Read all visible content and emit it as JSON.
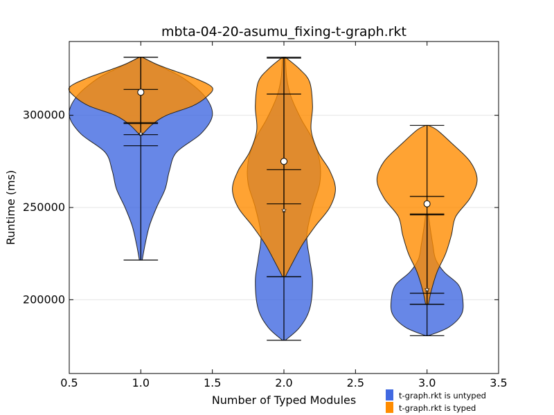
{
  "chart_data": {
    "type": "violin",
    "title": "mbta-04-20-asumu_fixing-t-graph.rkt",
    "xlabel": "Number of Typed Modules",
    "ylabel": "Runtime (ms)",
    "xlim": [
      0.5,
      3.5
    ],
    "ylim": [
      160000,
      340000
    ],
    "xticks": [
      0.5,
      1.0,
      1.5,
      2.0,
      2.5,
      3.0,
      3.5
    ],
    "xtick_labels": [
      "0.5",
      "1.0",
      "1.5",
      "2.0",
      "2.5",
      "3.0",
      "3.5"
    ],
    "yticks": [
      200000,
      250000,
      300000
    ],
    "ytick_labels": [
      "200000",
      "250000",
      "300000"
    ],
    "grid": "horizontal",
    "legend_position": "bottom-right, outside plot",
    "series": [
      {
        "name": "t-graph.rkt is untyped",
        "color": "#4169E1",
        "violins": [
          {
            "x": 1.0,
            "min": 221500,
            "max": 331500,
            "mean": 290000,
            "ci_low": 283500,
            "ci_high": 296000,
            "profile": [
              [
                221500,
                0.01
              ],
              [
                230000,
                0.03
              ],
              [
                240000,
                0.06
              ],
              [
                250000,
                0.11
              ],
              [
                260000,
                0.17
              ],
              [
                270000,
                0.2
              ],
              [
                280000,
                0.25
              ],
              [
                290000,
                0.42
              ],
              [
                300000,
                0.5
              ],
              [
                310000,
                0.45
              ],
              [
                320000,
                0.3
              ],
              [
                326000,
                0.15
              ],
              [
                331500,
                0.01
              ]
            ]
          },
          {
            "x": 2.0,
            "min": 178000,
            "max": 331000,
            "mean": 248500,
            "ci_low": 212500,
            "ci_high": 270500,
            "profile": [
              [
                178000,
                0.01
              ],
              [
                185000,
                0.11
              ],
              [
                195000,
                0.18
              ],
              [
                210000,
                0.2
              ],
              [
                222000,
                0.18
              ],
              [
                235000,
                0.16
              ],
              [
                250000,
                0.2
              ],
              [
                263000,
                0.25
              ],
              [
                275000,
                0.25
              ],
              [
                287000,
                0.2
              ],
              [
                298000,
                0.12
              ],
              [
                310000,
                0.05
              ],
              [
                320000,
                0.02
              ],
              [
                331000,
                0.01
              ]
            ]
          },
          {
            "x": 3.0,
            "min": 180500,
            "max": 246000,
            "mean": 205500,
            "ci_low": 197500,
            "ci_high": 203500,
            "profile": [
              [
                180500,
                0.01
              ],
              [
                185000,
                0.15
              ],
              [
                192000,
                0.24
              ],
              [
                200000,
                0.25
              ],
              [
                208000,
                0.22
              ],
              [
                215000,
                0.12
              ],
              [
                222000,
                0.06
              ],
              [
                230000,
                0.04
              ],
              [
                240000,
                0.02
              ],
              [
                246000,
                0.01
              ]
            ]
          }
        ]
      },
      {
        "name": "t-graph.rkt is typed",
        "color": "#FF8C00",
        "violins": [
          {
            "x": 1.0,
            "min": 289500,
            "max": 331500,
            "mean": 312500,
            "ci_low": 295500,
            "ci_high": 314000,
            "profile": [
              [
                289500,
                0.01
              ],
              [
                295000,
                0.08
              ],
              [
                300000,
                0.18
              ],
              [
                305000,
                0.36
              ],
              [
                310000,
                0.46
              ],
              [
                315000,
                0.5
              ],
              [
                320000,
                0.38
              ],
              [
                325000,
                0.2
              ],
              [
                328000,
                0.1
              ],
              [
                331500,
                0.01
              ]
            ]
          },
          {
            "x": 2.0,
            "min": 212500,
            "max": 331500,
            "mean": 275000,
            "ci_low": 252000,
            "ci_high": 311500,
            "profile": [
              [
                212500,
                0.01
              ],
              [
                220000,
                0.06
              ],
              [
                230000,
                0.13
              ],
              [
                240000,
                0.22
              ],
              [
                250000,
                0.32
              ],
              [
                260000,
                0.36
              ],
              [
                270000,
                0.32
              ],
              [
                280000,
                0.24
              ],
              [
                292000,
                0.19
              ],
              [
                305000,
                0.2
              ],
              [
                318000,
                0.18
              ],
              [
                325000,
                0.11
              ],
              [
                331500,
                0.01
              ]
            ]
          },
          {
            "x": 3.0,
            "min": 197500,
            "max": 294500,
            "mean": 252000,
            "ci_low": 246500,
            "ci_high": 256000,
            "profile": [
              [
                197500,
                0.01
              ],
              [
                205000,
                0.03
              ],
              [
                215000,
                0.07
              ],
              [
                225000,
                0.13
              ],
              [
                235000,
                0.17
              ],
              [
                245000,
                0.2
              ],
              [
                255000,
                0.3
              ],
              [
                265000,
                0.35
              ],
              [
                275000,
                0.3
              ],
              [
                285000,
                0.17
              ],
              [
                292000,
                0.07
              ],
              [
                294500,
                0.01
              ]
            ]
          }
        ]
      }
    ]
  }
}
